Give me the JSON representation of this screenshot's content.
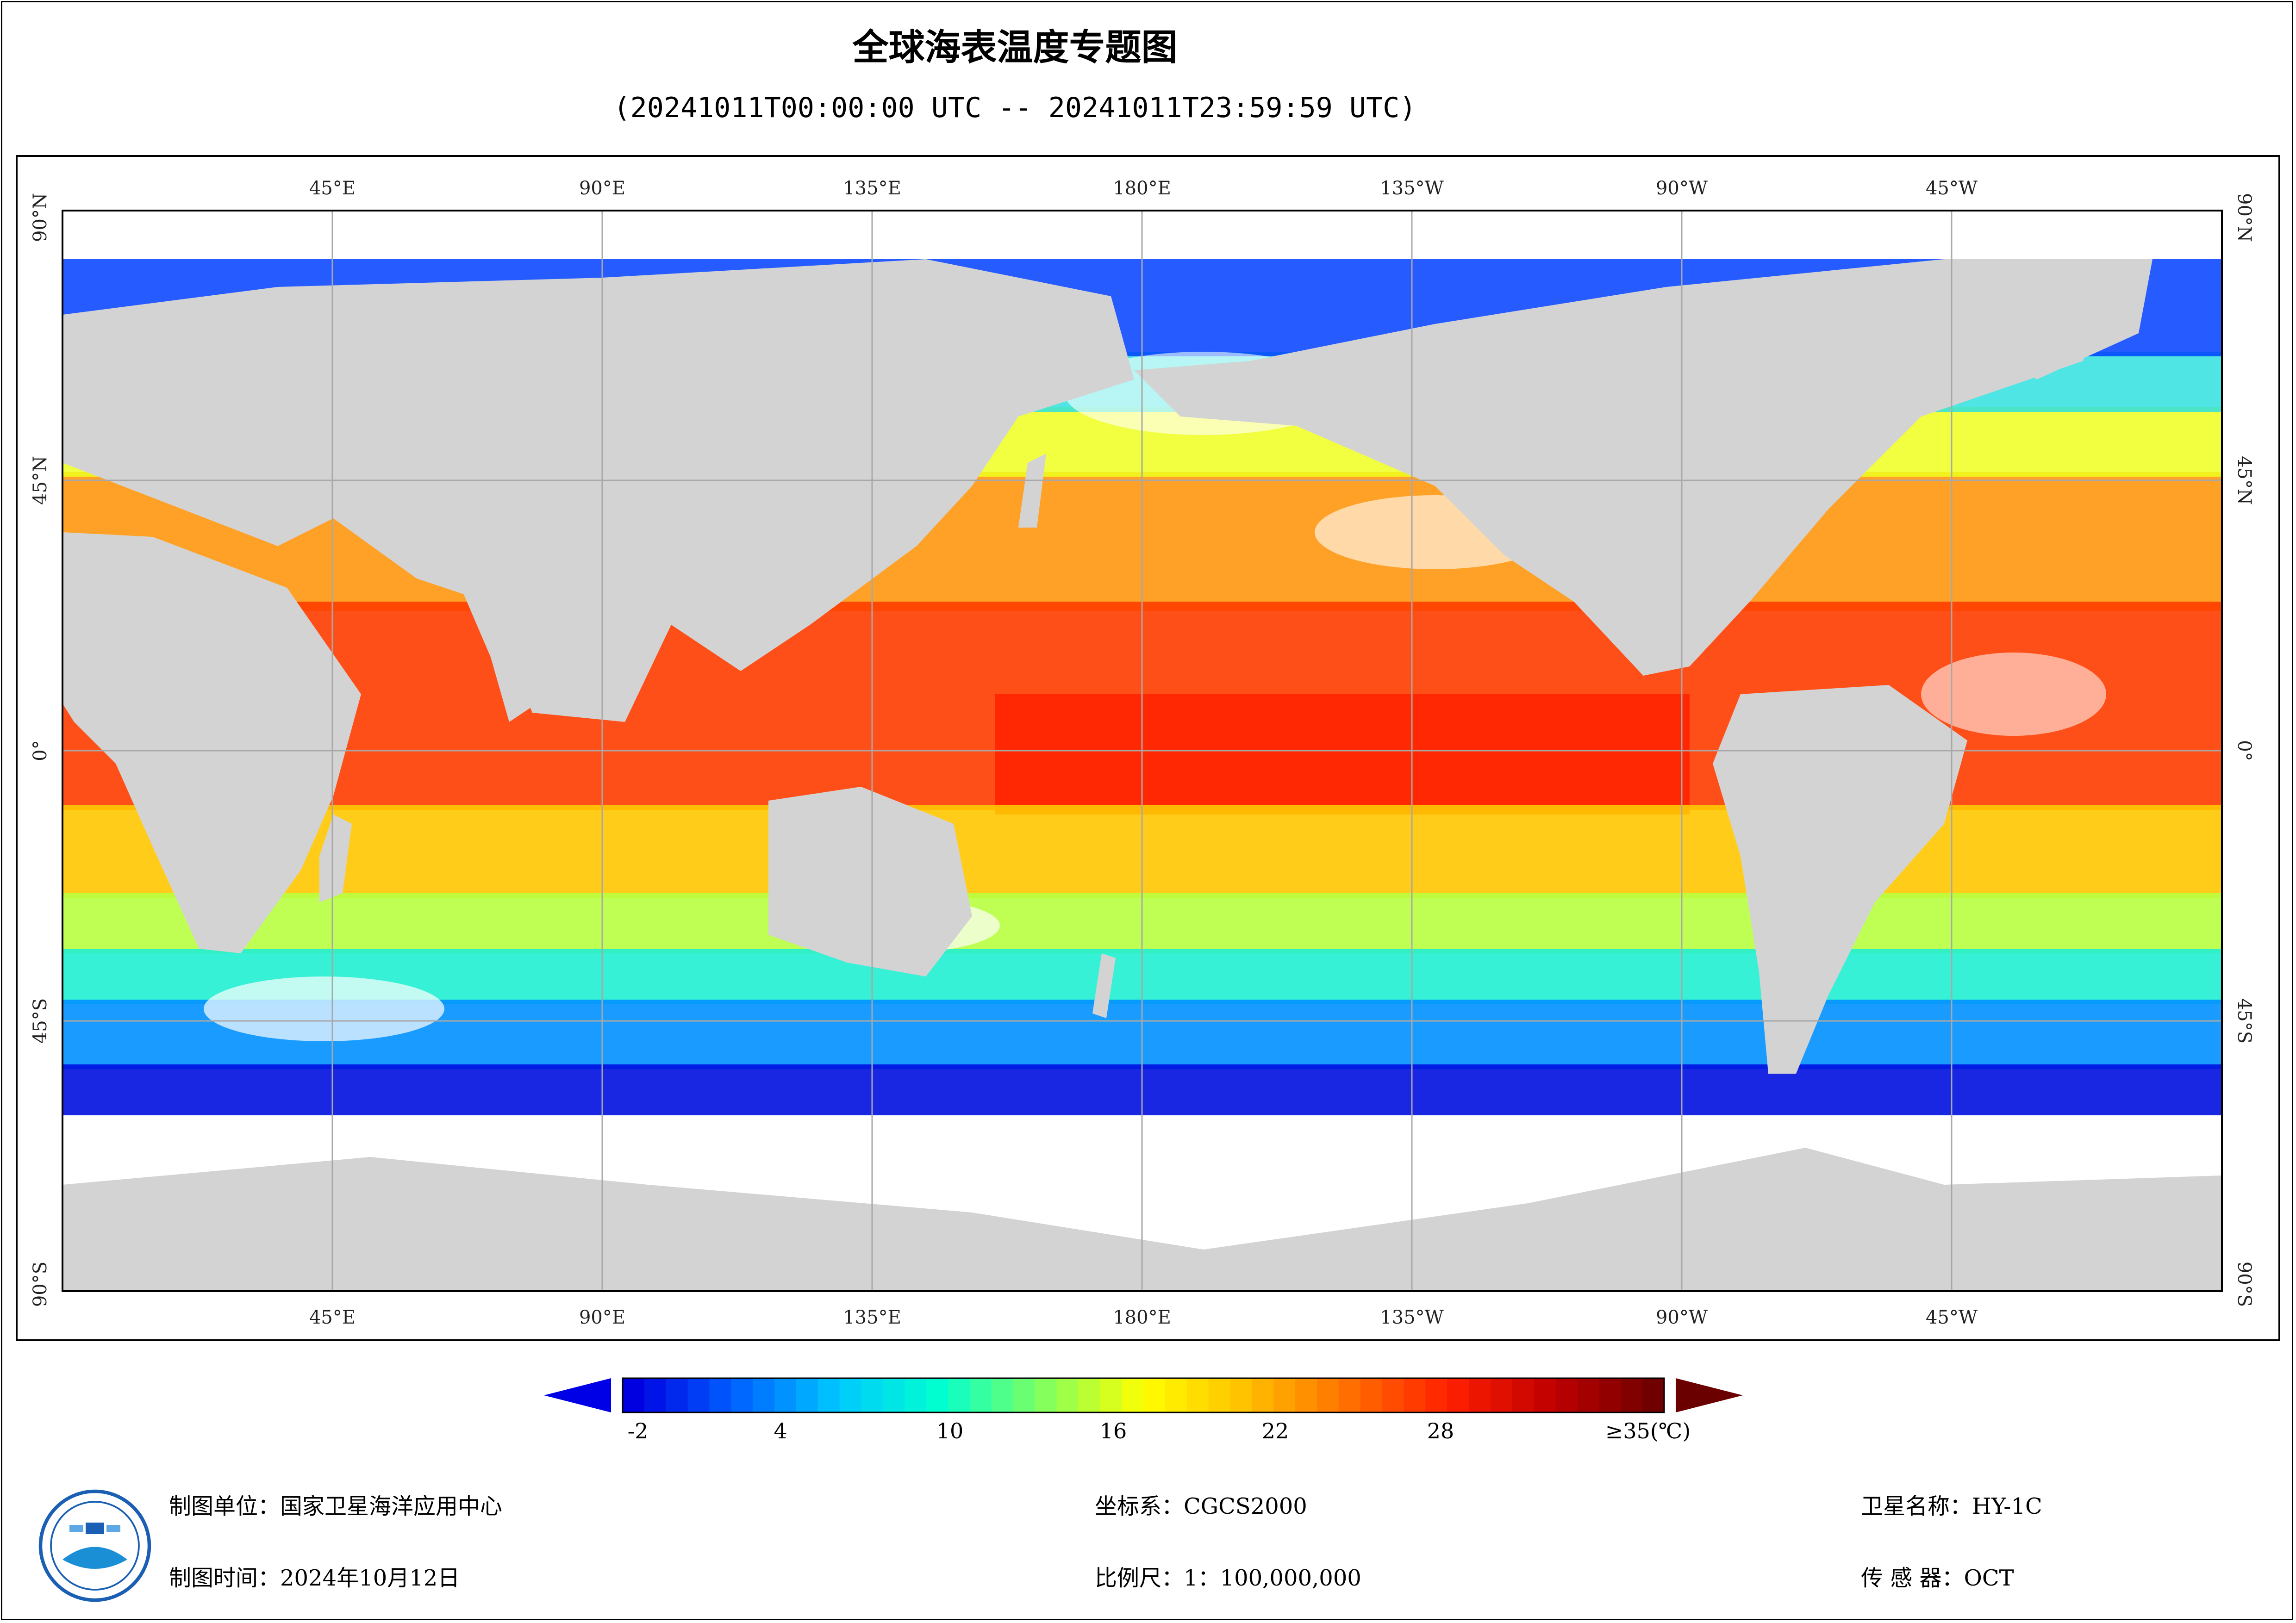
{
  "title": "全球海表温度专题图",
  "subtitle": "(20241011T00:00:00 UTC -- 20241011T23:59:59 UTC)",
  "map": {
    "top_lon_labels": [
      "45°E",
      "90°E",
      "135°E",
      "180°E",
      "135°W",
      "90°W",
      "45°W"
    ],
    "bottom_lon_labels": [
      "45°E",
      "90°E",
      "135°E",
      "180°E",
      "135°W",
      "90°W",
      "45°W"
    ],
    "lat_labels": [
      "90°N",
      "45°N",
      "0°",
      "45°S",
      "90°S"
    ],
    "colors": {
      "land": "#d3d3d3",
      "grid": "#a8a8a8"
    }
  },
  "colorbar": {
    "ticks": [
      "-2",
      "4",
      "10",
      "16",
      "22",
      "28",
      "≥35(℃)"
    ],
    "colors": [
      "#0000e0",
      "#0060ff",
      "#00c8ff",
      "#00ffd0",
      "#80ff60",
      "#ffff00",
      "#ffc000",
      "#ff7000",
      "#ff2000",
      "#c00000",
      "#700000"
    ]
  },
  "footer": {
    "unit": "制图单位：国家卫星海洋应用中心",
    "time": "制图时间：2024年10月12日",
    "crs": "坐标系：CGCS2000",
    "scale": "比例尺：1：100,000,000",
    "satellite": "卫星名称：HY-1C",
    "sensor": "传 感 器：OCT"
  }
}
